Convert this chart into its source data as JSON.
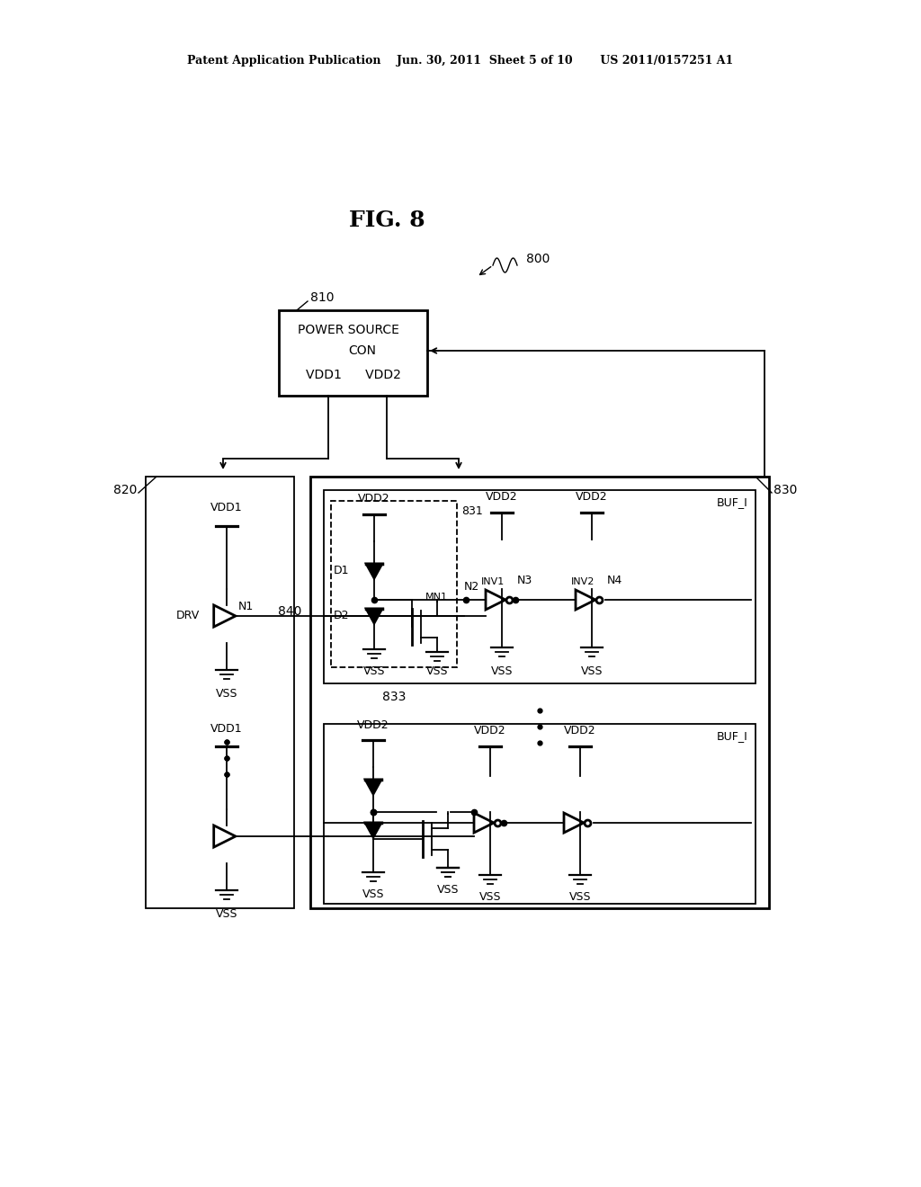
{
  "bg": "#ffffff",
  "header": "Patent Application Publication    Jun. 30, 2011  Sheet 5 of 10       US 2011/0157251 A1",
  "fig_title": "FIG. 8",
  "label_800": "800",
  "label_810": "810",
  "label_820": "820",
  "label_830": "830",
  "label_831": "831",
  "label_833": "833",
  "label_840": "840",
  "ps_line1": "POWER SOURCE",
  "ps_line2": "CON",
  "ps_line3": "VDD1      VDD2"
}
